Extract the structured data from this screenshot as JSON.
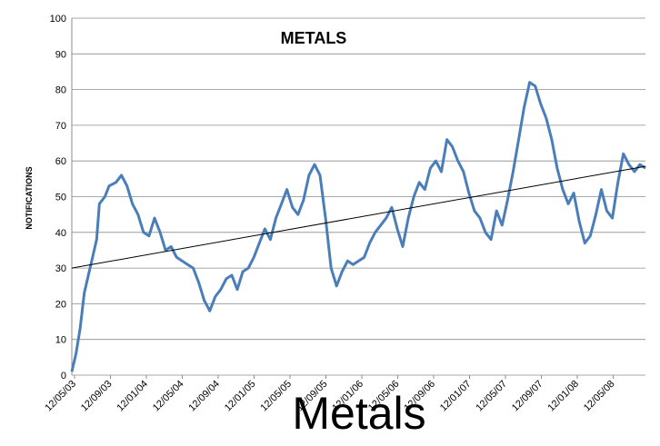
{
  "chart_data": {
    "type": "line",
    "title": "METALS",
    "xlabel": "",
    "ylabel": "NOTIFICATIONS",
    "ylim": [
      0,
      100
    ],
    "y_ticks": [
      0,
      10,
      20,
      30,
      40,
      50,
      60,
      70,
      80,
      90,
      100
    ],
    "x_ticks": [
      "12/05/03",
      "12/09/03",
      "12/01/04",
      "12/05/04",
      "12/09/04",
      "12/01/05",
      "12/05/05",
      "12/09/05",
      "12/01/06",
      "12/05/06",
      "12/09/06",
      "12/01/07",
      "12/05/07",
      "12/09/07",
      "12/01/08",
      "12/05/08"
    ],
    "grid": true,
    "colors": {
      "series": "#4a7ebb",
      "trend": "#000000",
      "grid": "#8c8c8c"
    },
    "series": [
      {
        "values": [
          [
            0,
            1
          ],
          [
            0.15,
            6
          ],
          [
            0.3,
            13
          ],
          [
            0.45,
            23
          ],
          [
            0.6,
            28
          ],
          [
            0.75,
            33
          ],
          [
            0.9,
            38
          ],
          [
            1.0,
            48
          ],
          [
            1.2,
            50
          ],
          [
            1.35,
            53
          ],
          [
            1.6,
            54
          ],
          [
            1.8,
            56
          ],
          [
            2.0,
            53
          ],
          [
            2.2,
            48
          ],
          [
            2.4,
            45
          ],
          [
            2.6,
            40
          ],
          [
            2.8,
            39
          ],
          [
            3.0,
            44
          ],
          [
            3.2,
            40
          ],
          [
            3.4,
            35
          ],
          [
            3.6,
            36
          ],
          [
            3.8,
            33
          ],
          [
            4.0,
            32
          ],
          [
            4.2,
            31
          ],
          [
            4.4,
            30
          ],
          [
            4.6,
            26
          ],
          [
            4.8,
            21
          ],
          [
            5.0,
            18
          ],
          [
            5.2,
            22
          ],
          [
            5.4,
            24
          ],
          [
            5.6,
            27
          ],
          [
            5.8,
            28
          ],
          [
            6.0,
            24
          ],
          [
            6.2,
            29
          ],
          [
            6.4,
            30
          ],
          [
            6.6,
            33
          ],
          [
            6.8,
            37
          ],
          [
            7.0,
            41
          ],
          [
            7.2,
            38
          ],
          [
            7.4,
            44
          ],
          [
            7.6,
            48
          ],
          [
            7.8,
            52
          ],
          [
            8.0,
            47
          ],
          [
            8.2,
            45
          ],
          [
            8.4,
            49
          ],
          [
            8.6,
            56
          ],
          [
            8.8,
            59
          ],
          [
            9.0,
            56
          ],
          [
            9.2,
            44
          ],
          [
            9.4,
            30
          ],
          [
            9.6,
            25
          ],
          [
            9.8,
            29
          ],
          [
            10.0,
            32
          ],
          [
            10.2,
            31
          ],
          [
            10.4,
            32
          ],
          [
            10.6,
            33
          ],
          [
            10.8,
            37
          ],
          [
            11.0,
            40
          ],
          [
            11.2,
            42
          ],
          [
            11.4,
            44
          ],
          [
            11.6,
            47
          ],
          [
            11.8,
            41
          ],
          [
            12.0,
            36
          ],
          [
            12.2,
            44
          ],
          [
            12.4,
            50
          ],
          [
            12.6,
            54
          ],
          [
            12.8,
            52
          ],
          [
            13.0,
            58
          ],
          [
            13.2,
            60
          ],
          [
            13.4,
            57
          ],
          [
            13.6,
            66
          ],
          [
            13.8,
            64
          ],
          [
            14.0,
            60
          ],
          [
            14.2,
            57
          ],
          [
            14.4,
            51
          ],
          [
            14.6,
            46
          ],
          [
            14.8,
            44
          ],
          [
            15.0,
            40
          ],
          [
            15.2,
            38
          ],
          [
            15.4,
            46
          ],
          [
            15.6,
            42
          ],
          [
            15.8,
            49
          ],
          [
            16.0,
            57
          ],
          [
            16.2,
            66
          ],
          [
            16.4,
            75
          ],
          [
            16.6,
            82
          ],
          [
            16.8,
            81
          ],
          [
            17.0,
            76
          ],
          [
            17.2,
            72
          ],
          [
            17.4,
            66
          ],
          [
            17.6,
            58
          ],
          [
            17.8,
            52
          ],
          [
            18.0,
            48
          ],
          [
            18.2,
            51
          ],
          [
            18.4,
            43
          ],
          [
            18.6,
            37
          ],
          [
            18.8,
            39
          ],
          [
            19.0,
            45
          ],
          [
            19.2,
            52
          ],
          [
            19.4,
            46
          ],
          [
            19.6,
            44
          ],
          [
            19.8,
            54
          ],
          [
            20.0,
            62
          ],
          [
            20.2,
            59
          ],
          [
            20.4,
            57
          ],
          [
            20.6,
            59
          ],
          [
            20.8,
            58
          ]
        ]
      },
      {
        "name": "",
        "type": "trend",
        "values": [
          [
            0,
            30
          ],
          [
            20.8,
            58.5
          ]
        ]
      }
    ],
    "x_domain": [
      0,
      20.8
    ]
  },
  "caption": "Metals"
}
